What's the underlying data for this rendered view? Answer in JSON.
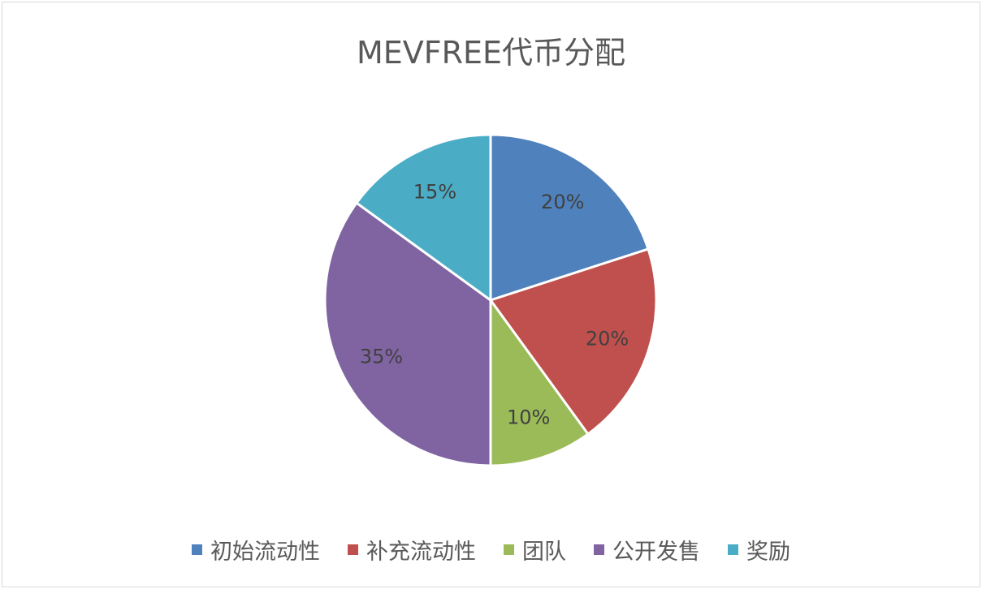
{
  "chart_data": {
    "type": "pie",
    "title": "MEVFREE代币分配",
    "start_angle": "12 o'clock",
    "direction": "clockwise",
    "legend_position": "bottom",
    "slices": [
      {
        "label": "初始流动性",
        "value": 20,
        "display": "20%",
        "color": "#4F81BD"
      },
      {
        "label": "补充流动性",
        "value": 20,
        "display": "20%",
        "color": "#C0504D"
      },
      {
        "label": "团队",
        "value": 10,
        "display": "10%",
        "color": "#9BBB59"
      },
      {
        "label": "公开发售",
        "value": 35,
        "display": "35%",
        "color": "#8064A2"
      },
      {
        "label": "奖励",
        "value": 15,
        "display": "15%",
        "color": "#4BACC6"
      }
    ]
  }
}
